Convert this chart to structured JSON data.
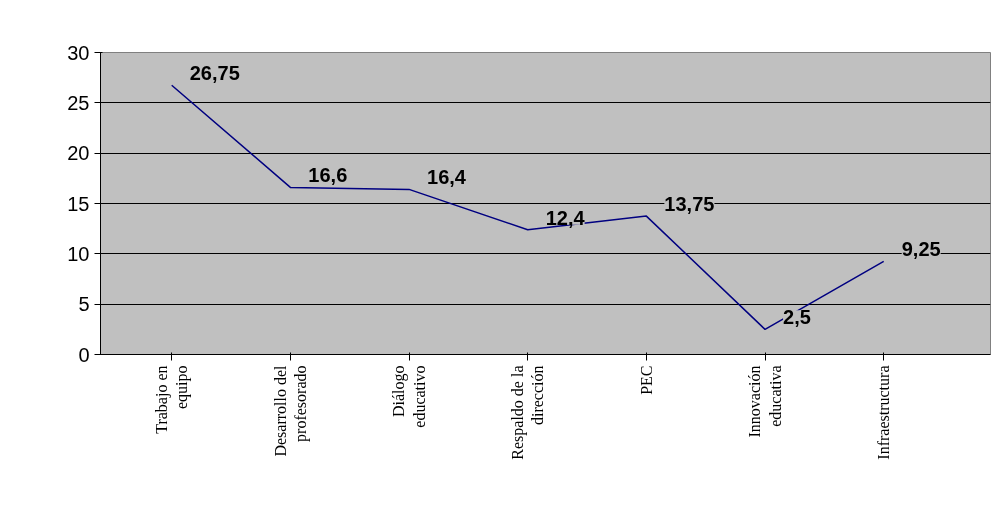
{
  "chart_data": {
    "type": "line",
    "categories": [
      "Trabajo en equipo",
      "Desarrollo del profesorado",
      "Diálogo educativo",
      "Respaldo de la dirección",
      "PEC",
      "Innovación educativa",
      "Infraestructura"
    ],
    "values": [
      26.75,
      16.6,
      16.4,
      12.4,
      13.75,
      2.5,
      9.25
    ],
    "value_labels": [
      "26,75",
      "16,6",
      "16,4",
      "12,4",
      "13,75",
      "2,5",
      "9,25"
    ],
    "color": "#000080",
    "ylim": [
      0,
      30
    ],
    "yticks": [
      0,
      5,
      10,
      15,
      20,
      25,
      30
    ],
    "grid": "y",
    "marker": "none",
    "line_style": "solid"
  }
}
